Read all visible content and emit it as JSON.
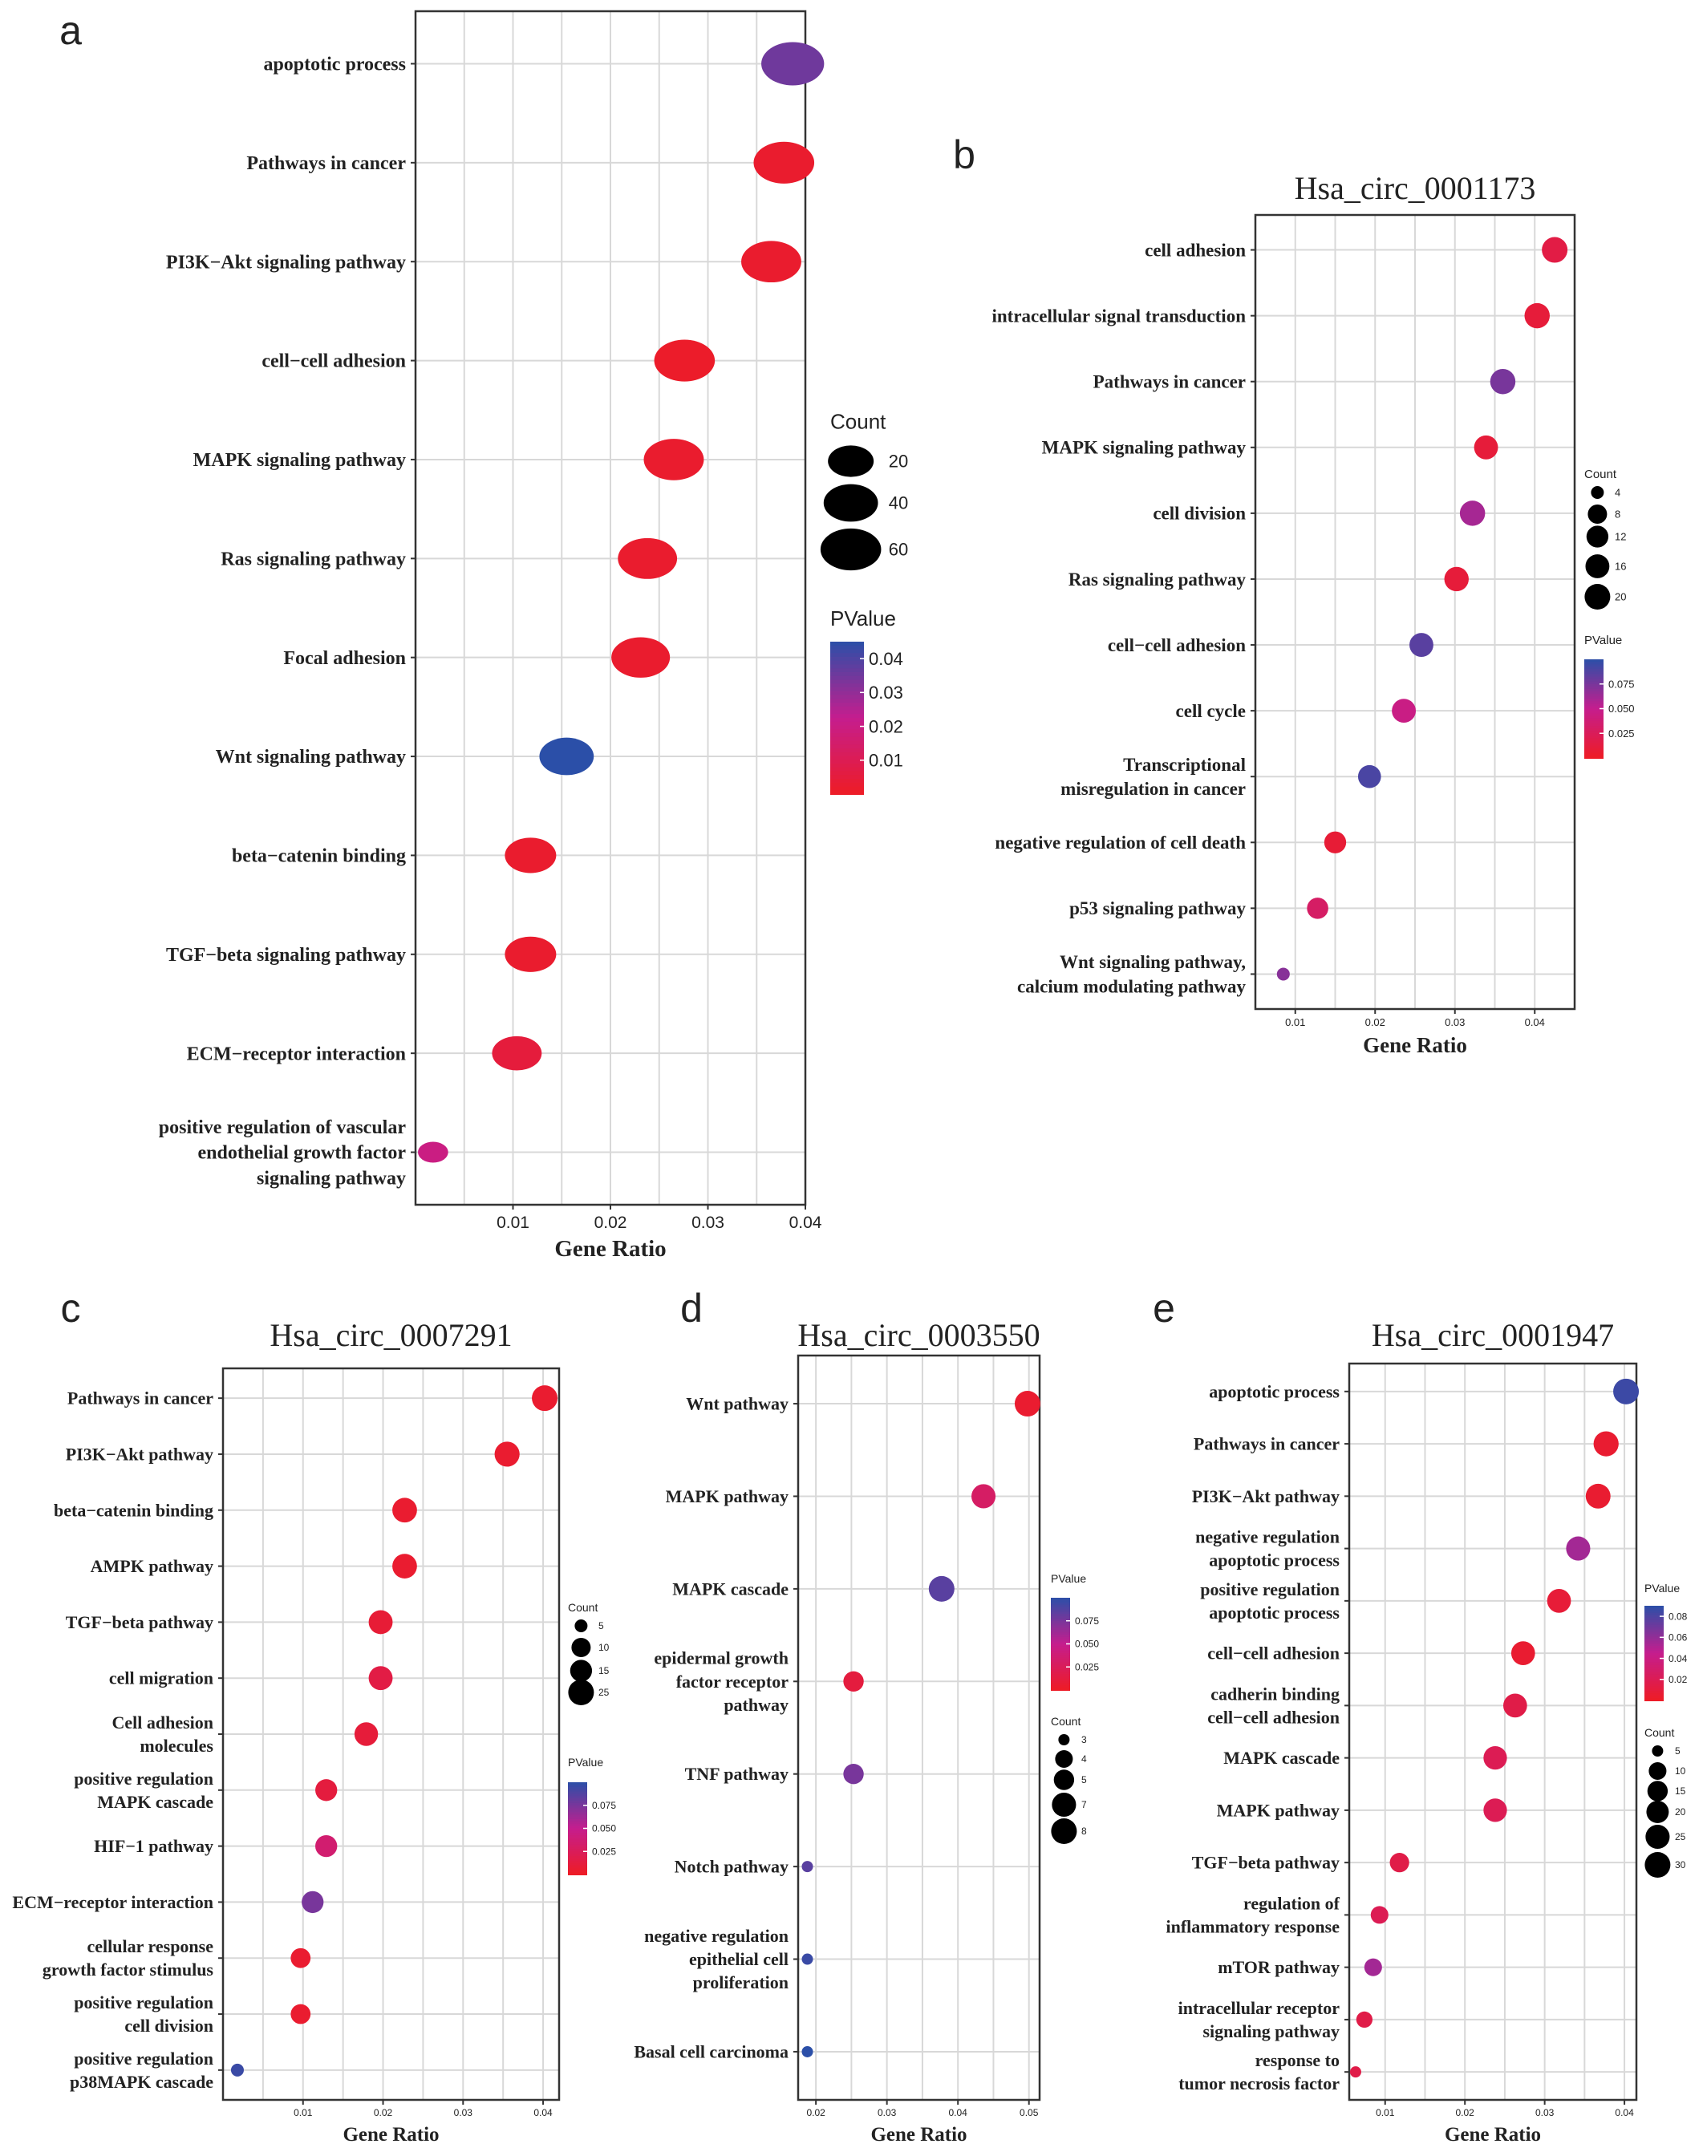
{
  "chart_data": [
    {
      "panel": "a",
      "type": "scatter",
      "title": "",
      "xlabel": "Gene Ratio",
      "ylabel": "",
      "xlim": [
        0.0,
        0.04
      ],
      "xticks": [
        0.01,
        0.02,
        0.03,
        0.04
      ],
      "xtick_labels": [
        "0.01",
        "0.02",
        "0.03",
        "0.04"
      ],
      "grid": true,
      "legend_position": "right",
      "count_legend": {
        "title": "Count",
        "values": [
          20,
          40,
          60
        ]
      },
      "pvalue_legend": {
        "title": "PValue",
        "min": 0.0,
        "max": 0.045,
        "ticks": [
          "0.04",
          "0.03",
          "0.02",
          "0.01"
        ],
        "tick_values": [
          0.04,
          0.03,
          0.02,
          0.01
        ]
      },
      "points": [
        {
          "label": [
            "apoptotic process"
          ],
          "x": 0.0387,
          "count": 68,
          "p": 0.035
        },
        {
          "label": [
            "Pathways in cancer"
          ],
          "x": 0.0378,
          "count": 60,
          "p": 0.002
        },
        {
          "label": [
            "PI3K−Akt signaling pathway"
          ],
          "x": 0.0365,
          "count": 58,
          "p": 0.002
        },
        {
          "label": [
            "cell−cell adhesion"
          ],
          "x": 0.0276,
          "count": 60,
          "p": 0.001
        },
        {
          "label": [
            "MAPK signaling pathway"
          ],
          "x": 0.0265,
          "count": 58,
          "p": 0.002
        },
        {
          "label": [
            "Ras signaling pathway"
          ],
          "x": 0.0238,
          "count": 55,
          "p": 0.002
        },
        {
          "label": [
            "Focal adhesion"
          ],
          "x": 0.0231,
          "count": 53,
          "p": 0.002
        },
        {
          "label": [
            "Wnt signaling pathway"
          ],
          "x": 0.0155,
          "count": 40,
          "p": 0.045
        },
        {
          "label": [
            "beta−catenin binding"
          ],
          "x": 0.0118,
          "count": 32,
          "p": 0.002
        },
        {
          "label": [
            "TGF−beta signaling pathway"
          ],
          "x": 0.0118,
          "count": 32,
          "p": 0.002
        },
        {
          "label": [
            "ECM−receptor interaction"
          ],
          "x": 0.0104,
          "count": 28,
          "p": 0.005
        },
        {
          "label": [
            "positive regulation of vascular",
            "endothelial growth factor",
            "signaling pathway"
          ],
          "x": 0.0018,
          "count": 6,
          "p": 0.02
        }
      ]
    },
    {
      "panel": "b",
      "type": "scatter",
      "title": "Hsa_circ_0001173",
      "xlabel": "Gene Ratio",
      "ylabel": "",
      "xlim": [
        0.005,
        0.045
      ],
      "xticks": [
        0.01,
        0.02,
        0.03,
        0.04
      ],
      "xtick_labels": [
        "0.01",
        "0.02",
        "0.03",
        "0.04"
      ],
      "grid": true,
      "legend_position": "right",
      "count_legend": {
        "title": "Count",
        "values": [
          4,
          8,
          12,
          16,
          20
        ]
      },
      "pvalue_legend": {
        "title": "PValue",
        "min": 0.0,
        "max": 0.1,
        "ticks": [
          "0.075",
          "0.050",
          "0.025"
        ],
        "tick_values": [
          0.075,
          0.05,
          0.025
        ]
      },
      "points": [
        {
          "label": [
            "cell adhesion"
          ],
          "x": 0.0425,
          "count": 20,
          "p": 0.015
        },
        {
          "label": [
            "intracellular signal transduction"
          ],
          "x": 0.0403,
          "count": 19,
          "p": 0.01
        },
        {
          "label": [
            "Pathways in cancer"
          ],
          "x": 0.036,
          "count": 19,
          "p": 0.075
        },
        {
          "label": [
            "MAPK signaling pathway"
          ],
          "x": 0.0339,
          "count": 16,
          "p": 0.01
        },
        {
          "label": [
            "cell division"
          ],
          "x": 0.0322,
          "count": 19,
          "p": 0.06
        },
        {
          "label": [
            "Ras signaling pathway"
          ],
          "x": 0.0302,
          "count": 17,
          "p": 0.01
        },
        {
          "label": [
            "cell−cell adhesion"
          ],
          "x": 0.0258,
          "count": 16,
          "p": 0.085
        },
        {
          "label": [
            "cell cycle"
          ],
          "x": 0.0236,
          "count": 16,
          "p": 0.045
        },
        {
          "label": [
            "Transcriptional",
            "misregulation in cancer"
          ],
          "x": 0.0193,
          "count": 14,
          "p": 0.09
        },
        {
          "label": [
            "negative regulation of cell death"
          ],
          "x": 0.015,
          "count": 12,
          "p": 0.008
        },
        {
          "label": [
            "p53 signaling pathway"
          ],
          "x": 0.0128,
          "count": 11,
          "p": 0.03
        },
        {
          "label": [
            "Wnt signaling pathway,",
            "calcium modulating pathway"
          ],
          "x": 0.0085,
          "count": 4,
          "p": 0.07
        }
      ]
    },
    {
      "panel": "c",
      "type": "scatter",
      "title": "Hsa_circ_0007291",
      "xlabel": "Gene Ratio",
      "ylabel": "",
      "xlim": [
        0.0,
        0.042
      ],
      "xticks": [
        0.01,
        0.02,
        0.03,
        0.04
      ],
      "xtick_labels": [
        "0.01",
        "0.02",
        "0.03",
        "0.04"
      ],
      "grid": true,
      "legend_position": "right",
      "count_legend": {
        "title": "Count",
        "values": [
          5,
          10,
          15,
          25
        ]
      },
      "pvalue_legend": {
        "title": "PValue",
        "min": 0.0,
        "max": 0.1,
        "ticks": [
          "0.075",
          "0.050",
          "0.025"
        ],
        "tick_values": [
          0.075,
          0.05,
          0.025
        ]
      },
      "points": [
        {
          "label": [
            "Pathways in cancer"
          ],
          "x": 0.0402,
          "count": 25,
          "p": 0.005
        },
        {
          "label": [
            "PI3K−Akt pathway"
          ],
          "x": 0.0355,
          "count": 23,
          "p": 0.005
        },
        {
          "label": [
            "beta−catenin binding"
          ],
          "x": 0.0227,
          "count": 22,
          "p": 0.005
        },
        {
          "label": [
            "AMPK pathway"
          ],
          "x": 0.0227,
          "count": 22,
          "p": 0.005
        },
        {
          "label": [
            "TGF−beta pathway"
          ],
          "x": 0.0197,
          "count": 20,
          "p": 0.008
        },
        {
          "label": [
            "cell migration"
          ],
          "x": 0.0197,
          "count": 20,
          "p": 0.015
        },
        {
          "label": [
            "Cell adhesion",
            "molecules"
          ],
          "x": 0.0179,
          "count": 19,
          "p": 0.01
        },
        {
          "label": [
            "positive regulation",
            "MAPK cascade"
          ],
          "x": 0.0129,
          "count": 15,
          "p": 0.012
        },
        {
          "label": [
            "HIF−1 pathway"
          ],
          "x": 0.0129,
          "count": 15,
          "p": 0.035
        },
        {
          "label": [
            "ECM−receptor interaction"
          ],
          "x": 0.0112,
          "count": 15,
          "p": 0.075
        },
        {
          "label": [
            "cellular response",
            "growth factor stimulus"
          ],
          "x": 0.0097,
          "count": 11,
          "p": 0.005
        },
        {
          "label": [
            "positive regulation",
            "cell division"
          ],
          "x": 0.0097,
          "count": 11,
          "p": 0.005
        },
        {
          "label": [
            "positive regulation",
            "p38MAPK cascade"
          ],
          "x": 0.0018,
          "count": 5,
          "p": 0.095
        }
      ]
    },
    {
      "panel": "d",
      "type": "scatter",
      "title": "Hsa_circ_0003550",
      "xlabel": "Gene Ratio",
      "ylabel": "",
      "xlim": [
        0.0175,
        0.0515
      ],
      "xticks": [
        0.02,
        0.03,
        0.04,
        0.05
      ],
      "xtick_labels": [
        "0.02",
        "0.03",
        "0.04",
        "0.05"
      ],
      "grid": true,
      "legend_position": "right",
      "count_legend": {
        "title": "Count",
        "values": [
          3,
          4,
          5,
          7,
          8
        ]
      },
      "pvalue_legend": {
        "title": "PValue",
        "min": 0.0,
        "max": 0.1,
        "ticks": [
          "0.075",
          "0.050",
          "0.025"
        ],
        "tick_values": [
          0.075,
          0.05,
          0.025
        ]
      },
      "points": [
        {
          "label": [
            "Wnt pathway"
          ],
          "x": 0.0498,
          "count": 8,
          "p": 0.005
        },
        {
          "label": [
            "MAPK pathway"
          ],
          "x": 0.0436,
          "count": 7,
          "p": 0.03
        },
        {
          "label": [
            "MAPK cascade"
          ],
          "x": 0.0377,
          "count": 8,
          "p": 0.085
        },
        {
          "label": [
            "epidermal growth",
            "factor receptor",
            "pathway"
          ],
          "x": 0.0253,
          "count": 5,
          "p": 0.012
        },
        {
          "label": [
            "TNF pathway"
          ],
          "x": 0.0253,
          "count": 5,
          "p": 0.075
        },
        {
          "label": [
            "Notch pathway"
          ],
          "x": 0.0188,
          "count": 3,
          "p": 0.085
        },
        {
          "label": [
            "negative regulation",
            "epithelial cell",
            "proliferation"
          ],
          "x": 0.0188,
          "count": 3,
          "p": 0.095
        },
        {
          "label": [
            "Basal cell carcinoma"
          ],
          "x": 0.0188,
          "count": 3,
          "p": 0.1
        }
      ]
    },
    {
      "panel": "e",
      "type": "scatter",
      "title": "Hsa_circ_0001947",
      "xlabel": "Gene Ratio",
      "ylabel": "",
      "xlim": [
        0.0055,
        0.0415
      ],
      "xticks": [
        0.01,
        0.02,
        0.03,
        0.04
      ],
      "xtick_labels": [
        "0.01",
        "0.02",
        "0.03",
        "0.04"
      ],
      "grid": true,
      "legend_position": "right",
      "count_legend": {
        "title": "Count",
        "values": [
          5,
          10,
          15,
          20,
          25,
          30
        ]
      },
      "pvalue_legend": {
        "title": "PValue",
        "min": 0.0,
        "max": 0.09,
        "ticks": [
          "0.08",
          "0.06",
          "0.04",
          "0.02"
        ],
        "tick_values": [
          0.08,
          0.06,
          0.04,
          0.02
        ]
      },
      "points": [
        {
          "label": [
            "apoptotic process"
          ],
          "x": 0.0402,
          "count": 30,
          "p": 0.085
        },
        {
          "label": [
            "Pathways in cancer"
          ],
          "x": 0.0377,
          "count": 28,
          "p": 0.005
        },
        {
          "label": [
            "PI3K−Akt pathway"
          ],
          "x": 0.0367,
          "count": 27,
          "p": 0.005
        },
        {
          "label": [
            "negative regulation",
            "apoptotic process"
          ],
          "x": 0.0342,
          "count": 25,
          "p": 0.055
        },
        {
          "label": [
            "positive regulation",
            "apoptotic process"
          ],
          "x": 0.0318,
          "count": 24,
          "p": 0.008
        },
        {
          "label": [
            "cell−cell adhesion"
          ],
          "x": 0.0273,
          "count": 24,
          "p": 0.005
        },
        {
          "label": [
            "cadherin binding",
            "cell−cell adhesion"
          ],
          "x": 0.0263,
          "count": 24,
          "p": 0.015
        },
        {
          "label": [
            "MAPK cascade"
          ],
          "x": 0.0238,
          "count": 23,
          "p": 0.02
        },
        {
          "label": [
            "MAPK pathway"
          ],
          "x": 0.0238,
          "count": 23,
          "p": 0.02
        },
        {
          "label": [
            "TGF−beta pathway"
          ],
          "x": 0.0118,
          "count": 13,
          "p": 0.015
        },
        {
          "label": [
            "regulation of",
            "inflammatory response"
          ],
          "x": 0.0093,
          "count": 10,
          "p": 0.02
        },
        {
          "label": [
            "mTOR pathway"
          ],
          "x": 0.0085,
          "count": 10,
          "p": 0.055
        },
        {
          "label": [
            "intracellular receptor",
            "signaling pathway"
          ],
          "x": 0.0074,
          "count": 8,
          "p": 0.015
        },
        {
          "label": [
            "response to",
            "tumor necrosis factor"
          ],
          "x": 0.0063,
          "count": 5,
          "p": 0.015
        }
      ]
    }
  ],
  "panel_letters": [
    "a",
    "b",
    "c",
    "d",
    "e"
  ],
  "colors": {
    "low_p": "#ee1c25",
    "mid_p": "#c51d8e",
    "high_p": "#2b4fa8",
    "grid": "#d8d8d8",
    "axis": "#333333"
  }
}
